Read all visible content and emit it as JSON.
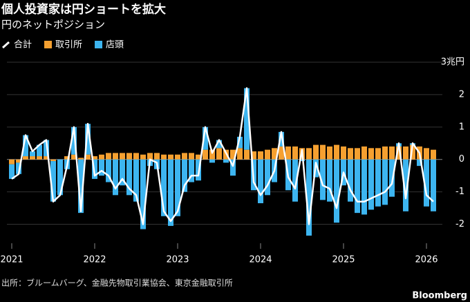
{
  "chart_data": {
    "type": "bar",
    "stacked": true,
    "title": "個人投資家は円ショートを拡大",
    "subtitle": "円のネットポジション",
    "source": "出所：ブルームバーグ、金融先物取引業協会、東京金融取引所",
    "brand": "Bloomberg",
    "categories": [
      "2021",
      null,
      null,
      null,
      null,
      null,
      null,
      null,
      null,
      null,
      null,
      null,
      "2022",
      null,
      null,
      null,
      null,
      null,
      null,
      null,
      null,
      null,
      null,
      null,
      "2023",
      null,
      null,
      null,
      null,
      null,
      null,
      null,
      null,
      null,
      null,
      null,
      "2024",
      null,
      null,
      null,
      null,
      null,
      null,
      null,
      null,
      null,
      null,
      null,
      "2025",
      null,
      null,
      null,
      null,
      null,
      null,
      null,
      null,
      null,
      null,
      null,
      "2026",
      null
    ],
    "series": [
      {
        "name": "合計",
        "type": "line",
        "color": "#ffffff",
        "values": [
          -0.6,
          -0.45,
          0.75,
          0.25,
          0.45,
          0.6,
          -1.3,
          -1.1,
          -0.2,
          1.0,
          -1.6,
          1.1,
          -0.5,
          -0.35,
          -0.5,
          -0.9,
          -0.6,
          -0.9,
          -1.1,
          -2.0,
          0.0,
          -0.1,
          -1.6,
          -1.9,
          -1.6,
          -0.8,
          -0.5,
          -0.5,
          1.0,
          0.2,
          0.6,
          0.2,
          -0.2,
          0.7,
          2.2,
          -0.7,
          -1.1,
          -0.8,
          -0.35,
          0.85,
          -0.55,
          -0.9,
          0.3,
          -2.0,
          -0.1,
          -0.8,
          -0.9,
          -1.5,
          -0.4,
          -0.95,
          -1.3,
          -1.3,
          -1.2,
          -1.1,
          -1.0,
          -0.75,
          0.5,
          -1.2,
          0.5,
          0.2,
          -1.1,
          -1.3
        ]
      },
      {
        "name": "取引所",
        "color": "#f5a030",
        "values": [
          -0.15,
          -0.1,
          0.1,
          0.1,
          0.1,
          0.1,
          -0.05,
          0.0,
          0.1,
          0.15,
          0.05,
          0.15,
          0.1,
          0.15,
          0.2,
          0.2,
          0.2,
          0.2,
          0.2,
          0.15,
          0.2,
          0.2,
          0.15,
          0.15,
          0.15,
          0.2,
          0.2,
          0.15,
          0.3,
          0.3,
          0.35,
          0.3,
          0.3,
          0.35,
          0.3,
          0.25,
          0.25,
          0.3,
          0.35,
          0.4,
          0.4,
          0.4,
          0.35,
          0.35,
          0.45,
          0.45,
          0.4,
          0.45,
          0.4,
          0.35,
          0.35,
          0.4,
          0.35,
          0.35,
          0.4,
          0.4,
          0.4,
          0.4,
          0.45,
          0.4,
          0.35,
          0.3
        ]
      },
      {
        "name": "店頭",
        "color": "#3db5f0",
        "values": [
          -0.45,
          -0.35,
          0.65,
          0.15,
          0.35,
          0.5,
          -1.25,
          -1.1,
          -0.3,
          0.85,
          -1.65,
          0.95,
          -0.6,
          -0.5,
          -0.7,
          -1.1,
          -0.8,
          -1.1,
          -1.3,
          -2.15,
          -0.2,
          -0.3,
          -1.75,
          -2.05,
          -1.75,
          -1.0,
          -0.7,
          -0.65,
          0.7,
          -0.1,
          0.25,
          -0.1,
          -0.5,
          0.35,
          1.9,
          -0.95,
          -1.35,
          -1.1,
          -0.7,
          0.45,
          -0.95,
          -1.3,
          -0.05,
          -2.35,
          -0.55,
          -1.25,
          -1.3,
          -1.95,
          -0.8,
          -1.3,
          -1.65,
          -1.7,
          -1.55,
          -1.45,
          -1.4,
          -1.15,
          0.1,
          -1.6,
          0.05,
          -0.2,
          -1.45,
          -1.6
        ]
      }
    ],
    "ylim": [
      -2.5,
      3
    ],
    "yticks": [
      {
        "value": 3,
        "label": "3兆円"
      },
      2,
      1,
      0,
      -1,
      -2
    ],
    "grid": true
  }
}
